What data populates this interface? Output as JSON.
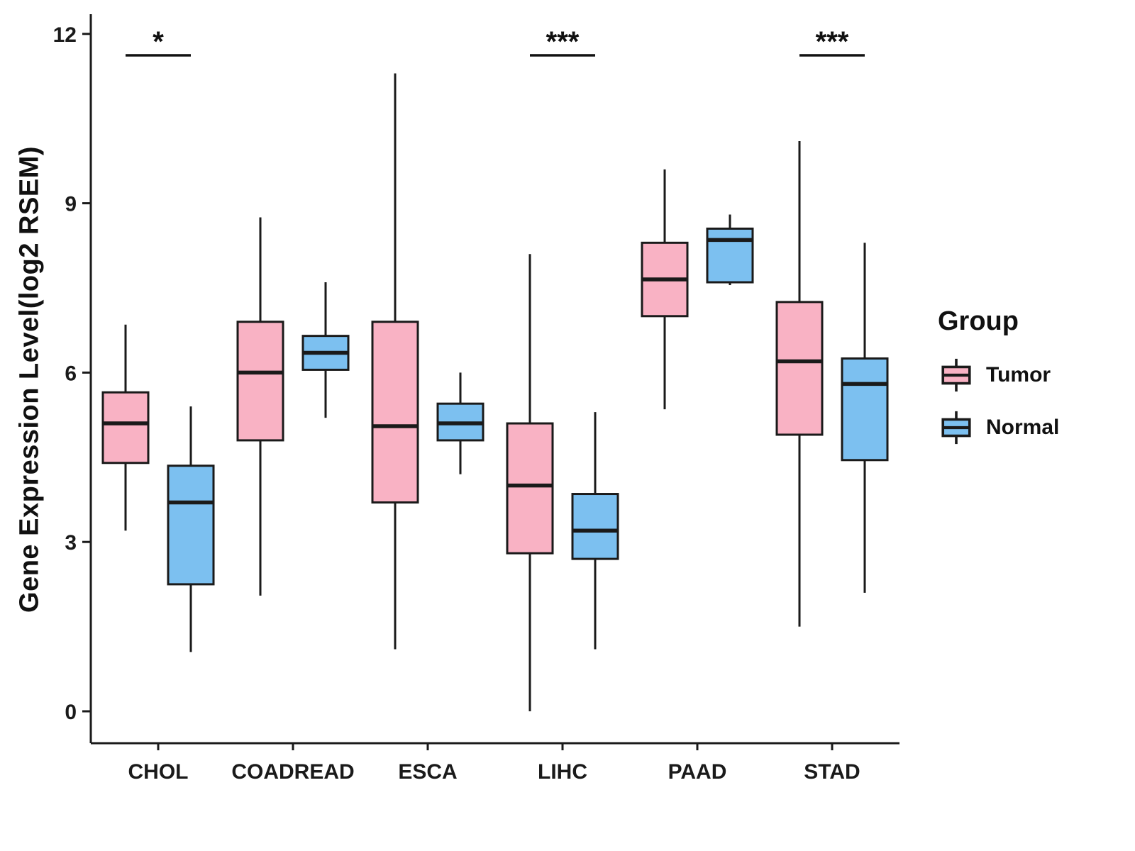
{
  "chart_data": {
    "type": "boxplot",
    "title": "",
    "xlabel": "",
    "ylabel": "Gene Expression Level(log2 RSEM)",
    "ylim": [
      0,
      12
    ],
    "yticks": [
      0,
      3,
      6,
      9,
      12
    ],
    "grid": false,
    "legend_position": "right",
    "categories": [
      "CHOL",
      "COADREAD",
      "ESCA",
      "LIHC",
      "PAAD",
      "STAD"
    ],
    "legend": {
      "title": "Group",
      "entries": [
        {
          "label": "Tumor",
          "color": "#F9B2C4"
        },
        {
          "label": "Normal",
          "color": "#7CC0F0"
        }
      ]
    },
    "colors": {
      "stroke": "#1A1A1A",
      "background": "#FFFFFF"
    },
    "series": [
      {
        "name": "Tumor",
        "color": "#F9B2C4",
        "boxes": [
          {
            "category": "CHOL",
            "min": 3.2,
            "q1": 4.4,
            "median": 5.1,
            "q3": 5.65,
            "max": 6.85
          },
          {
            "category": "COADREAD",
            "min": 2.05,
            "q1": 4.8,
            "median": 6.0,
            "q3": 6.9,
            "max": 8.75
          },
          {
            "category": "ESCA",
            "min": 1.1,
            "q1": 3.7,
            "median": 5.05,
            "q3": 6.9,
            "max": 11.3
          },
          {
            "category": "LIHC",
            "min": 0.0,
            "q1": 2.8,
            "median": 4.0,
            "q3": 5.1,
            "max": 8.1
          },
          {
            "category": "PAAD",
            "min": 5.35,
            "q1": 7.0,
            "median": 7.65,
            "q3": 8.3,
            "max": 9.6
          },
          {
            "category": "STAD",
            "min": 1.5,
            "q1": 4.9,
            "median": 6.2,
            "q3": 7.25,
            "max": 10.1
          }
        ]
      },
      {
        "name": "Normal",
        "color": "#7CC0F0",
        "boxes": [
          {
            "category": "CHOL",
            "min": 1.05,
            "q1": 2.25,
            "median": 3.7,
            "q3": 4.35,
            "max": 5.4
          },
          {
            "category": "COADREAD",
            "min": 5.2,
            "q1": 6.05,
            "median": 6.35,
            "q3": 6.65,
            "max": 7.6
          },
          {
            "category": "ESCA",
            "min": 4.2,
            "q1": 4.8,
            "median": 5.1,
            "q3": 5.45,
            "max": 6.0
          },
          {
            "category": "LIHC",
            "min": 1.1,
            "q1": 2.7,
            "median": 3.2,
            "q3": 3.85,
            "max": 5.3
          },
          {
            "category": "PAAD",
            "min": 7.55,
            "q1": 7.6,
            "median": 8.35,
            "q3": 8.55,
            "max": 8.8
          },
          {
            "category": "STAD",
            "min": 2.1,
            "q1": 4.45,
            "median": 5.8,
            "q3": 6.25,
            "max": 8.3
          }
        ]
      }
    ],
    "significance": [
      {
        "category": "CHOL",
        "label": "*"
      },
      {
        "category": "LIHC",
        "label": "***"
      },
      {
        "category": "STAD",
        "label": "***"
      }
    ]
  }
}
